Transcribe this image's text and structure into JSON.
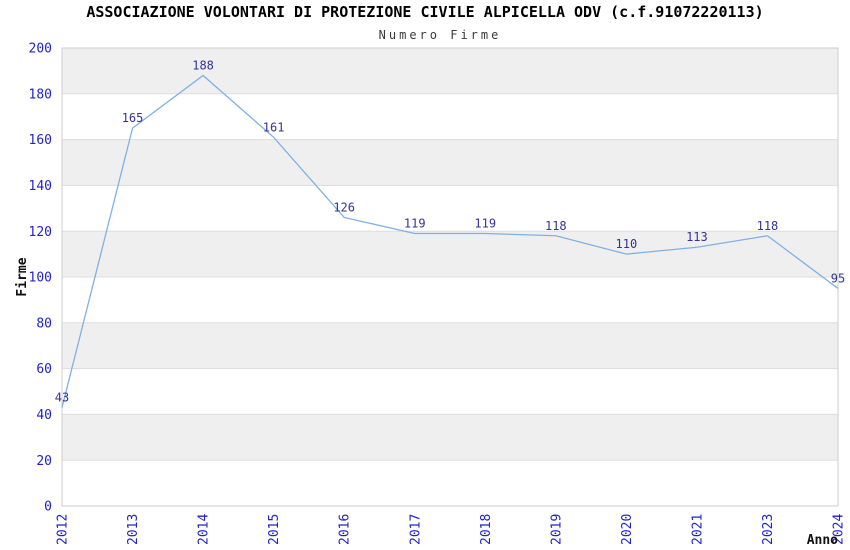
{
  "chart_data": {
    "type": "line",
    "title": "ASSOCIAZIONE VOLONTARI DI PROTEZIONE CIVILE ALPICELLA ODV (c.f.91072220113)",
    "subtitle": "Numero Firme",
    "xlabel": "Anno",
    "ylabel": "Firme",
    "categories": [
      "2012",
      "2013",
      "2014",
      "2015",
      "2016",
      "2017",
      "2018",
      "2019",
      "2020",
      "2021",
      "2023",
      "2024"
    ],
    "values": [
      43,
      165,
      188,
      161,
      126,
      119,
      119,
      118,
      110,
      113,
      118,
      95
    ],
    "series": [
      {
        "name": "Numero Firme",
        "values": [
          43,
          165,
          188,
          161,
          126,
          119,
          119,
          118,
          110,
          113,
          118,
          95
        ]
      }
    ],
    "ylim": [
      0,
      200
    ],
    "ytick_step": 20,
    "ytick_labels": [
      "0",
      "20",
      "40",
      "60",
      "80",
      "100",
      "120",
      "140",
      "160",
      "180",
      "200"
    ],
    "grid": "horizontal",
    "legend": "none",
    "plot_bands": "alternating horizontal stripes every 20 units",
    "x_tick_rotation": -90,
    "colors": {
      "line": "#7FB1E3",
      "data_label": "#333399",
      "tick_label": "#2222CC",
      "band_gray": "#EFEFEF",
      "band_white": "#FFFFFF",
      "gridline": "#DDDDDD",
      "plot_border": "#CCCCCC",
      "title": "#000000",
      "subtitle": "#3A3A3A",
      "axis_title": "#111111",
      "background": "#FFFFFF"
    }
  }
}
